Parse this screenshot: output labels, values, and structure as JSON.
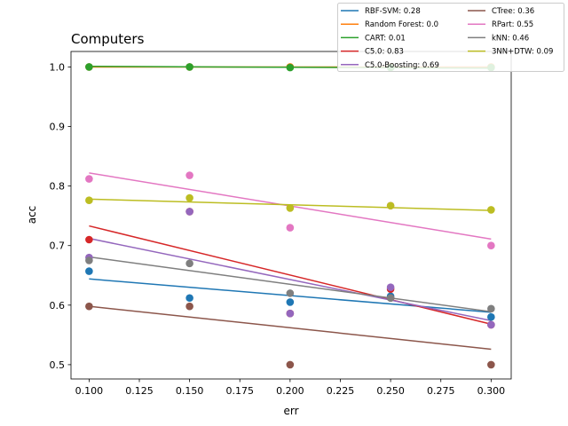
{
  "chart_data": {
    "type": "scatter",
    "title": "Computers",
    "xlabel": "err",
    "ylabel": "acc",
    "xlim": [
      0.091,
      0.31
    ],
    "ylim": [
      0.476,
      1.026
    ],
    "xticks": [
      0.1,
      0.125,
      0.15,
      0.175,
      0.2,
      0.225,
      0.25,
      0.275,
      0.3
    ],
    "xtick_labels": [
      "0.100",
      "0.125",
      "0.150",
      "0.175",
      "0.200",
      "0.225",
      "0.250",
      "0.275",
      "0.300"
    ],
    "yticks": [
      0.5,
      0.6,
      0.7,
      0.8,
      0.9,
      1.0
    ],
    "ytick_labels": [
      "0.5",
      "0.6",
      "0.7",
      "0.8",
      "0.9",
      "1.0"
    ],
    "grid": false,
    "legend_position": "top-right, outside axes, 2 columns",
    "series": [
      {
        "name": "RBF-SVM: 0.28",
        "color": "#1f77b4",
        "points": [
          [
            0.1,
            0.657
          ],
          [
            0.15,
            0.612
          ],
          [
            0.2,
            0.605
          ],
          [
            0.25,
            0.615
          ],
          [
            0.3,
            0.58
          ]
        ],
        "fit": [
          [
            0.1,
            0.644
          ],
          [
            0.3,
            0.588
          ]
        ]
      },
      {
        "name": "Random Forest: 0.0",
        "color": "#ff7f0e",
        "points": [
          [
            0.1,
            1.0
          ],
          [
            0.15,
            1.0
          ],
          [
            0.2,
            1.0
          ],
          [
            0.25,
            1.0
          ],
          [
            0.3,
            1.0
          ]
        ],
        "fit": [
          [
            0.1,
            1.0
          ],
          [
            0.3,
            1.0
          ]
        ]
      },
      {
        "name": "CART: 0.01",
        "color": "#2ca02c",
        "points": [
          [
            0.1,
            1.0
          ],
          [
            0.15,
            1.0
          ],
          [
            0.2,
            0.999
          ],
          [
            0.25,
            0.999
          ],
          [
            0.3,
            0.999
          ]
        ],
        "fit": [
          [
            0.1,
            1.001
          ],
          [
            0.3,
            0.998
          ]
        ]
      },
      {
        "name": "C5.0: 0.83",
        "color": "#d62728",
        "points": [
          [
            0.1,
            0.71
          ],
          [
            0.15,
            0.757
          ],
          [
            0.2,
            0.586
          ],
          [
            0.25,
            0.627
          ],
          [
            0.3,
            0.567
          ]
        ],
        "fit": [
          [
            0.1,
            0.733
          ],
          [
            0.3,
            0.568
          ]
        ]
      },
      {
        "name": "C5.0-Boosting: 0.69",
        "color": "#9467bd",
        "points": [
          [
            0.1,
            0.68
          ],
          [
            0.15,
            0.757
          ],
          [
            0.2,
            0.586
          ],
          [
            0.25,
            0.63
          ],
          [
            0.3,
            0.567
          ]
        ],
        "fit": [
          [
            0.1,
            0.712
          ],
          [
            0.3,
            0.574
          ]
        ]
      },
      {
        "name": "CTree: 0.36",
        "color": "#8c564b",
        "points": [
          [
            0.1,
            0.598
          ],
          [
            0.15,
            0.598
          ],
          [
            0.2,
            0.5
          ],
          [
            0.25,
            0.612
          ],
          [
            0.3,
            0.5
          ]
        ],
        "fit": [
          [
            0.1,
            0.598
          ],
          [
            0.3,
            0.526
          ]
        ]
      },
      {
        "name": "RPart: 0.55",
        "color": "#e377c2",
        "points": [
          [
            0.1,
            0.812
          ],
          [
            0.15,
            0.818
          ],
          [
            0.2,
            0.73
          ],
          [
            0.25,
            0.767
          ],
          [
            0.3,
            0.7
          ]
        ],
        "fit": [
          [
            0.1,
            0.822
          ],
          [
            0.3,
            0.711
          ]
        ]
      },
      {
        "name": "kNN: 0.46",
        "color": "#7f7f7f",
        "points": [
          [
            0.1,
            0.675
          ],
          [
            0.15,
            0.67
          ],
          [
            0.2,
            0.62
          ],
          [
            0.25,
            0.612
          ],
          [
            0.3,
            0.594
          ]
        ],
        "fit": [
          [
            0.1,
            0.681
          ],
          [
            0.3,
            0.589
          ]
        ]
      },
      {
        "name": "3NN+DTW: 0.09",
        "color": "#bcbd22",
        "points": [
          [
            0.1,
            0.776
          ],
          [
            0.15,
            0.78
          ],
          [
            0.2,
            0.763
          ],
          [
            0.25,
            0.767
          ],
          [
            0.3,
            0.76
          ]
        ],
        "fit": [
          [
            0.1,
            0.778
          ],
          [
            0.3,
            0.759
          ]
        ]
      }
    ]
  }
}
